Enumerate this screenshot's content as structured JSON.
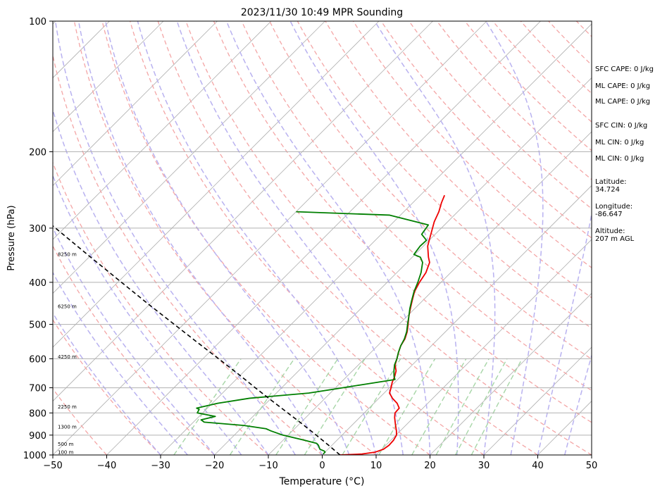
{
  "chart_data": {
    "type": "line",
    "title": "2023/11/30 10:49 MPR Sounding",
    "xlabel": "Temperature (°C)",
    "ylabel": "Pressure (hPa)",
    "xlim": [
      -50,
      50
    ],
    "ylim": [
      1000,
      100
    ],
    "y_scale": "log",
    "skew": true,
    "grid": true,
    "x_ticks": [
      "−50",
      "−40",
      "−30",
      "−20",
      "−10",
      "0",
      "10",
      "20",
      "30",
      "40",
      "50"
    ],
    "y_ticks": [
      "100",
      "200",
      "300",
      "400",
      "500",
      "600",
      "700",
      "800",
      "900",
      "1000"
    ],
    "height_labels": [
      {
        "label": "100 m",
        "p": 987
      },
      {
        "label": "500 m",
        "p": 945
      },
      {
        "label": "1300 m",
        "p": 862
      },
      {
        "label": "2250 m",
        "p": 775
      },
      {
        "label": "4250 m",
        "p": 595
      },
      {
        "label": "6250 m",
        "p": 455
      },
      {
        "label": "8250 m",
        "p": 345
      }
    ],
    "series": [
      {
        "color": "#ee0000",
        "points": [
          [
            1000,
            3.3
          ],
          [
            995,
            7.2
          ],
          [
            985,
            9.3
          ],
          [
            970,
            10.3
          ],
          [
            950,
            10.6
          ],
          [
            925,
            10.5
          ],
          [
            900,
            10.1
          ],
          [
            880,
            9.3
          ],
          [
            850,
            7.9
          ],
          [
            820,
            6.5
          ],
          [
            800,
            5.7
          ],
          [
            780,
            5.6
          ],
          [
            760,
            4.3
          ],
          [
            740,
            2.5
          ],
          [
            720,
            1.0
          ],
          [
            700,
            0.3
          ],
          [
            680,
            -0.5
          ],
          [
            660,
            -1.1
          ],
          [
            640,
            -1.9
          ],
          [
            620,
            -3.2
          ],
          [
            600,
            -4.0
          ],
          [
            580,
            -4.9
          ],
          [
            560,
            -5.7
          ],
          [
            540,
            -6.2
          ],
          [
            520,
            -7.1
          ],
          [
            500,
            -8.3
          ],
          [
            480,
            -9.6
          ],
          [
            460,
            -10.8
          ],
          [
            440,
            -12.0
          ],
          [
            420,
            -13.2
          ],
          [
            400,
            -14.0
          ],
          [
            380,
            -14.6
          ],
          [
            360,
            -15.8
          ],
          [
            350,
            -17.0
          ],
          [
            330,
            -19.2
          ],
          [
            310,
            -20.8
          ],
          [
            290,
            -22.5
          ],
          [
            275,
            -23.5
          ],
          [
            262,
            -24.7
          ],
          [
            252,
            -25.5
          ]
        ]
      },
      {
        "color": "#007f00",
        "points": [
          [
            995,
            0.0
          ],
          [
            985,
            0.0
          ],
          [
            980,
            -0.3
          ],
          [
            970,
            -1.5
          ],
          [
            950,
            -2.5
          ],
          [
            940,
            -3.2
          ],
          [
            925,
            -6.0
          ],
          [
            900,
            -11.0
          ],
          [
            880,
            -14.0
          ],
          [
            870,
            -15.3
          ],
          [
            855,
            -20.0
          ],
          [
            840,
            -28.0
          ],
          [
            830,
            -29.0
          ],
          [
            815,
            -27.0
          ],
          [
            800,
            -31.0
          ],
          [
            785,
            -31.3
          ],
          [
            780,
            -32.0
          ],
          [
            760,
            -29.0
          ],
          [
            740,
            -24.0
          ],
          [
            720,
            -14.0
          ],
          [
            705,
            -10.0
          ],
          [
            690,
            -6.0
          ],
          [
            670,
            -0.5
          ],
          [
            660,
            -1.2
          ],
          [
            640,
            -2.3
          ],
          [
            620,
            -3.3
          ],
          [
            600,
            -4.0
          ],
          [
            580,
            -4.9
          ],
          [
            560,
            -5.7
          ],
          [
            540,
            -6.3
          ],
          [
            520,
            -7.2
          ],
          [
            500,
            -8.4
          ],
          [
            480,
            -9.6
          ],
          [
            460,
            -10.9
          ],
          [
            440,
            -12.1
          ],
          [
            420,
            -13.3
          ],
          [
            400,
            -14.3
          ],
          [
            380,
            -15.5
          ],
          [
            360,
            -17.1
          ],
          [
            350,
            -18.5
          ],
          [
            345,
            -20.2
          ],
          [
            330,
            -20.6
          ],
          [
            320,
            -20.5
          ],
          [
            310,
            -22.5
          ],
          [
            295,
            -23.0
          ],
          [
            280,
            -32.0
          ],
          [
            275,
            -50.0
          ]
        ]
      },
      {
        "color": "#000000",
        "dashed": true,
        "points": [
          [
            1000,
            3.3
          ],
          [
            950,
            -0.6
          ],
          [
            900,
            -4.8
          ],
          [
            850,
            -9.3
          ],
          [
            800,
            -14.2
          ],
          [
            750,
            -19.4
          ],
          [
            700,
            -24.9
          ],
          [
            650,
            -30.7
          ],
          [
            600,
            -37.1
          ],
          [
            550,
            -44.1
          ],
          [
            500,
            -51.7
          ],
          [
            450,
            -60.1
          ],
          [
            400,
            -69.3
          ],
          [
            350,
            -79.7
          ],
          [
            300,
            -91.6
          ],
          [
            270,
            -99.8
          ]
        ]
      }
    ]
  },
  "info": {
    "sfc_cape": "SFC CAPE: 0 J/kg",
    "ml_cape": "ML CAPE: 0 J/kg",
    "ml_cape2": "ML CAPE: 0 J/kg",
    "sfc_cin": "SFC CIN: 0 J/kg",
    "ml_cin": "ML CIN: 0 J/kg",
    "ml_cin2": "ML CIN: 0 J/kg",
    "latitude_label": "Latitude:",
    "latitude_value": "34.724",
    "longitude_label": "Longitude:",
    "longitude_value": "-86.647",
    "altitude_label": "Altitude:",
    "altitude_value": "207 m AGL"
  }
}
